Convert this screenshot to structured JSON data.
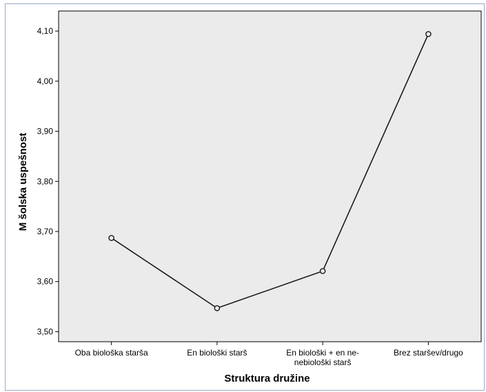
{
  "chart_data": {
    "type": "line",
    "categories": [
      [
        "Oba biološka starša"
      ],
      [
        "En biološki starš"
      ],
      [
        "En biološki + en ne-",
        "nebiološki starš"
      ],
      [
        "Brez staršev/drugo"
      ]
    ],
    "series": [
      {
        "values": [
          3.687,
          3.547,
          3.621,
          4.094
        ]
      }
    ],
    "xlabel": "Struktura družine",
    "ylabel": "M šolska uspešnost",
    "ylim": [
      3.48,
      4.14
    ],
    "yticks": [
      3.5,
      3.6,
      3.7,
      3.8,
      3.9,
      4.0,
      4.1
    ],
    "ytick_labels": [
      "3,50",
      "3,60",
      "3,70",
      "3,80",
      "3,90",
      "4,00",
      "4,10"
    ],
    "grid": false,
    "colors": {
      "plot_background": "#ebebeb",
      "line": "#1a1a1a",
      "frame": "#9aa7c7"
    }
  }
}
